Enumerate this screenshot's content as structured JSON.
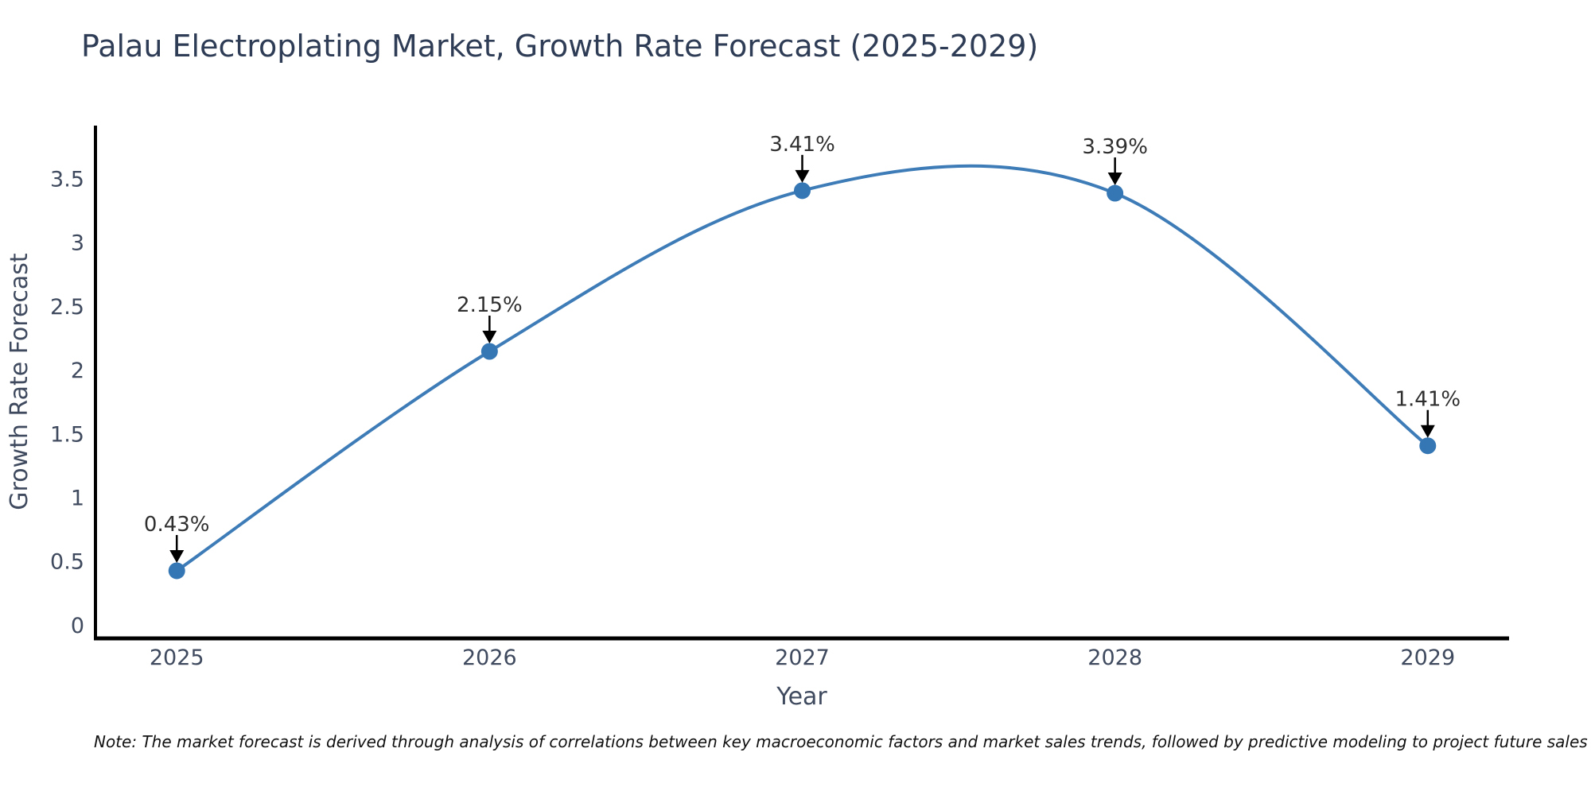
{
  "chart_data": {
    "type": "line",
    "title": "Palau Electroplating Market, Growth Rate Forecast (2025-2029)",
    "xlabel": "Year",
    "ylabel": "Growth Rate Forecast",
    "x": [
      2025,
      2026,
      2027,
      2028,
      2029
    ],
    "y": [
      0.43,
      2.15,
      3.41,
      3.39,
      1.41
    ],
    "point_labels": [
      "0.43%",
      "2.15%",
      "3.41%",
      "3.39%",
      "1.41%"
    ],
    "yticks": [
      0,
      0.5,
      1,
      1.5,
      2,
      2.5,
      3,
      3.5
    ],
    "xticks": [
      "2025",
      "2026",
      "2027",
      "2028",
      "2029"
    ],
    "xlim": [
      2024.74,
      2029.26
    ],
    "ylim": [
      -0.1,
      3.92
    ],
    "line_shape": "spline",
    "grid": false,
    "legend": "none",
    "colors": {
      "line": "#3e7cb8",
      "marker": "#3577b4",
      "axis": "#000000",
      "title_text": "#2e3c55",
      "tick_text": "#3f4a5f",
      "axis_title_text": "#3f4a5f",
      "annotation_text": "#2f2f2f",
      "arrow": "#000000",
      "note_text": "#111111"
    }
  },
  "note": "Note: The market forecast is derived through analysis of correlations between key macroeconomic factors and market sales trends, followed by predictive modeling to project future sales"
}
